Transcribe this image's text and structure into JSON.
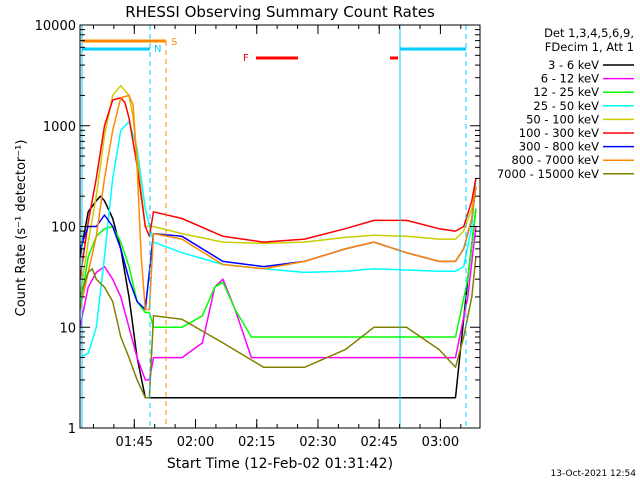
{
  "chart_data": {
    "type": "line",
    "title": "RHESSI Observing Summary Count Rates",
    "xlabel": "Start Time (12-Feb-02 01:31:42)",
    "ylabel": "Count Rate (s⁻¹ detector⁻¹)",
    "y_scale": "log",
    "ylim": [
      1,
      10000
    ],
    "xlim_minutes_after_start": [
      0,
      98
    ],
    "x_ticks": [
      "01:45",
      "02:00",
      "02:15",
      "02:30",
      "02:45",
      "03:00"
    ],
    "y_ticks": [
      "1",
      "10",
      "100",
      "1000",
      "10000"
    ],
    "grid": false,
    "legend_position": "right",
    "legend_header": [
      "Det 1,3,4,5,6,9,",
      "FDecim 1, Att 1"
    ],
    "timestamp": "13-Oct-2021 12:54",
    "series": [
      {
        "name": "3 - 6 keV",
        "color": "#000000",
        "x": [
          0,
          2,
          4,
          5,
          6,
          8,
          10,
          12,
          14,
          16,
          17,
          18,
          25,
          35,
          45,
          55,
          65,
          75,
          85,
          92,
          95,
          97
        ],
        "y": [
          50,
          140,
          180,
          200,
          180,
          120,
          60,
          20,
          5,
          2,
          2,
          2,
          2,
          2,
          2,
          2,
          2,
          2,
          2,
          2,
          30,
          150
        ]
      },
      {
        "name": "6 - 12 keV",
        "color": "#ff00ff",
        "x": [
          0,
          2,
          4,
          6,
          8,
          10,
          12,
          14,
          16,
          17,
          18,
          25,
          30,
          33,
          35,
          38,
          42,
          48,
          55,
          65,
          75,
          85,
          92,
          95,
          97
        ],
        "y": [
          10,
          25,
          35,
          40,
          30,
          20,
          10,
          5,
          3,
          3,
          5,
          5,
          7,
          25,
          30,
          15,
          5,
          5,
          5,
          5,
          5,
          5,
          5,
          20,
          100
        ]
      },
      {
        "name": "12 - 25 keV",
        "color": "#00ff00",
        "x": [
          0,
          2,
          4,
          6,
          8,
          10,
          12,
          14,
          16,
          17,
          18,
          25,
          30,
          33,
          35,
          38,
          42,
          48,
          55,
          65,
          75,
          85,
          92,
          95,
          97
        ],
        "y": [
          15,
          50,
          80,
          95,
          100,
          70,
          40,
          18,
          14,
          14,
          10,
          10,
          13,
          25,
          28,
          15,
          8,
          8,
          8,
          8,
          8,
          8,
          8,
          30,
          150
        ]
      },
      {
        "name": "25 - 50 keV",
        "color": "#00ffff",
        "x": [
          0,
          2,
          4,
          6,
          8,
          10,
          12,
          14,
          16,
          18,
          25,
          35,
          45,
          55,
          65,
          72,
          80,
          88,
          92,
          94,
          96,
          97
        ],
        "y": [
          5,
          5.5,
          10,
          50,
          300,
          900,
          1100,
          600,
          150,
          70,
          55,
          42,
          38,
          35,
          36,
          38,
          37,
          36,
          36,
          40,
          100,
          300
        ]
      },
      {
        "name": "50 - 100 keV",
        "color": "#cccc00",
        "x": [
          0,
          2,
          4,
          6,
          8,
          10,
          12,
          13,
          14,
          16,
          18,
          25,
          35,
          45,
          55,
          65,
          72,
          80,
          88,
          92,
          94,
          96,
          97
        ],
        "y": [
          20,
          70,
          200,
          800,
          2000,
          2500,
          2000,
          1200,
          500,
          100,
          100,
          85,
          70,
          68,
          70,
          78,
          82,
          80,
          75,
          75,
          90,
          150,
          250
        ]
      },
      {
        "name": "100 - 300 keV",
        "color": "#ff0000",
        "x": [
          0,
          2,
          4,
          6,
          8,
          10,
          11,
          12,
          14,
          16,
          17,
          18,
          25,
          35,
          45,
          55,
          65,
          72,
          80,
          88,
          92,
          94,
          96,
          97
        ],
        "y": [
          30,
          110,
          300,
          1000,
          1800,
          1900,
          1700,
          1200,
          400,
          100,
          80,
          140,
          120,
          80,
          70,
          75,
          95,
          115,
          115,
          95,
          90,
          100,
          180,
          300
        ]
      },
      {
        "name": "300 - 800 keV",
        "color": "#0000ff",
        "x": [
          0,
          2,
          4,
          6,
          8,
          10,
          12,
          14,
          16,
          18,
          25,
          35,
          45,
          55,
          65,
          72,
          80,
          88,
          92,
          94,
          96,
          97
        ],
        "y": [
          60,
          100,
          100,
          130,
          100,
          60,
          30,
          18,
          15,
          85,
          80,
          45,
          40,
          45,
          60,
          70,
          55,
          45,
          45,
          60,
          120,
          250
        ]
      },
      {
        "name": "800 - 7000 keV",
        "color": "#ff8800",
        "x": [
          0,
          2,
          4,
          6,
          8,
          10,
          12,
          13,
          14,
          15,
          16,
          17,
          18,
          25,
          35,
          45,
          55,
          65,
          72,
          80,
          88,
          92,
          94,
          96,
          97
        ],
        "y": [
          15,
          35,
          80,
          300,
          900,
          1900,
          2000,
          1600,
          400,
          50,
          15,
          15,
          85,
          75,
          42,
          38,
          45,
          60,
          70,
          55,
          45,
          45,
          60,
          120,
          250
        ]
      },
      {
        "name": "7000 - 15000 keV",
        "color": "#808000",
        "x": [
          0,
          2,
          3,
          4,
          6,
          8,
          10,
          12,
          14,
          16,
          17,
          18,
          25,
          35,
          45,
          55,
          65,
          72,
          80,
          88,
          92,
          94,
          96,
          97
        ],
        "y": [
          20,
          35,
          38,
          30,
          25,
          18,
          8,
          5,
          3,
          2,
          2,
          13,
          12,
          7,
          4,
          4,
          6,
          10,
          10,
          6,
          4,
          8,
          20,
          50
        ]
      }
    ],
    "annotations": [
      {
        "text": "S",
        "color": "#ff8800"
      },
      {
        "text": "N",
        "color": "#00ccff"
      },
      {
        "text": "F",
        "color": "#ff0000"
      }
    ]
  }
}
